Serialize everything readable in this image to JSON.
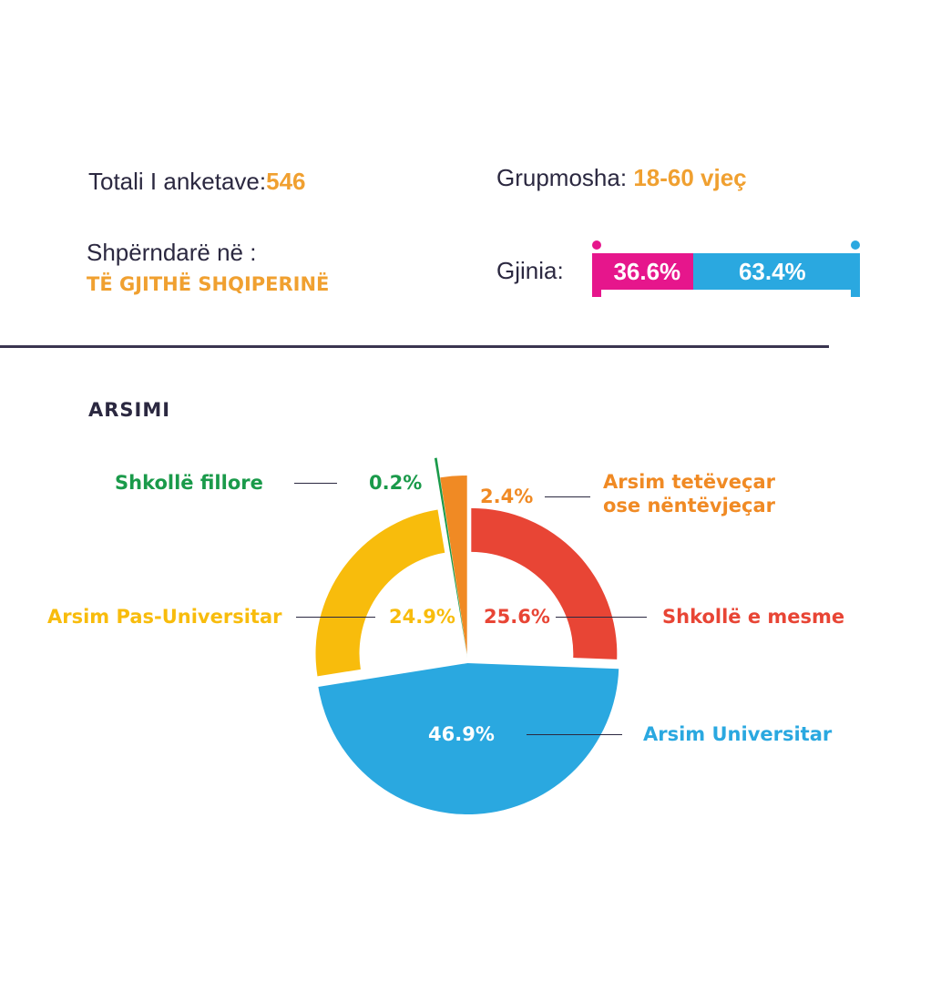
{
  "header": {
    "total_label": "Totali I anketave:",
    "total_value": "546",
    "age_label": "Grupmosha:",
    "age_value": "18-60 vjeç",
    "dist_label": "Shpërndarë në :",
    "dist_value": "TË GJITHË SHQIPERINË",
    "gender_label": "Gjinia:",
    "female_pct": "36.6%",
    "male_pct": "63.4%"
  },
  "colors": {
    "female": "#e6168c",
    "male": "#2aa8e0",
    "accent": "#f0a030"
  },
  "section_title": "ARSIMI",
  "chart_data": {
    "type": "pie",
    "title": "ARSIMI",
    "slices": [
      {
        "label": "Shkollë e mesme",
        "value": 25.6,
        "value_label": "25.6%",
        "color": "#e84535"
      },
      {
        "label": "Arsim Universitar",
        "value": 46.9,
        "value_label": "46.9%",
        "color": "#2aa8e0"
      },
      {
        "label": "Arsim Pas-Universitar",
        "value": 24.9,
        "value_label": "24.9%",
        "color": "#f8bc0c"
      },
      {
        "label": "Shkollë fillore",
        "value": 0.2,
        "value_label": "0.2%",
        "color": "#1a9a4a"
      },
      {
        "label": "Arsim tetëveçar ose nëntëvjeçar",
        "value": 2.4,
        "value_label": "2.4%",
        "color": "#f08a24"
      }
    ]
  }
}
